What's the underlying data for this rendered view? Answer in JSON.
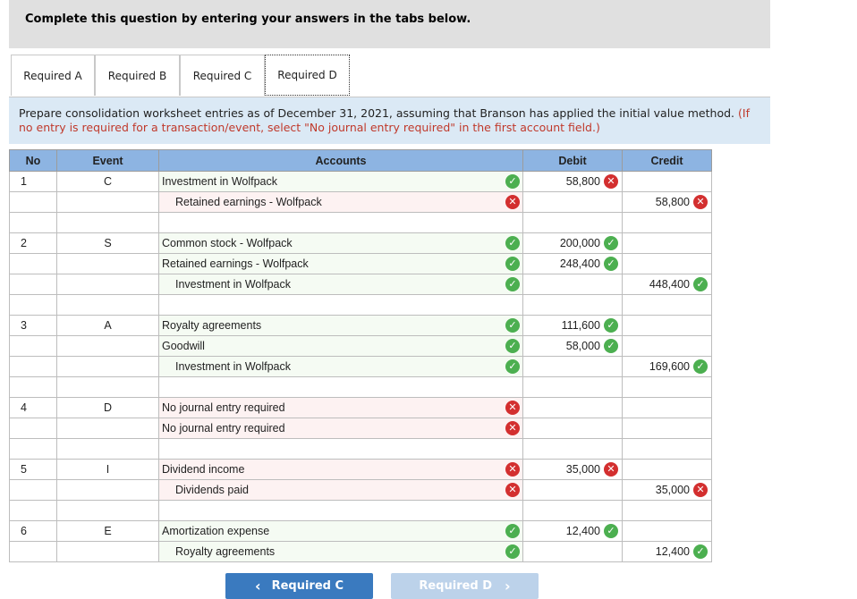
{
  "header": {
    "title": "Complete this question by entering your answers in the tabs below."
  },
  "tabs": [
    {
      "label": "Required A",
      "active": false
    },
    {
      "label": "Required B",
      "active": false
    },
    {
      "label": "Required C",
      "active": false
    },
    {
      "label": "Required D",
      "active": true
    }
  ],
  "instructions": {
    "main": "Prepare consolidation worksheet entries as of December 31, 2021, assuming that Branson has applied the initial value method.",
    "note": "(If no entry is required for a transaction/event, select \"No journal entry required\" in the first account field.)"
  },
  "table": {
    "headers": {
      "no": "No",
      "event": "Event",
      "accounts": "Accounts",
      "debit": "Debit",
      "credit": "Credit"
    },
    "rows": [
      {
        "no": "1",
        "event": "C",
        "account": "Investment in Wolfpack",
        "indent": false,
        "account_status": "ok",
        "debit": "58,800",
        "debit_status": "bad",
        "credit": "",
        "credit_status": ""
      },
      {
        "no": "",
        "event": "",
        "account": "Retained earnings - Wolfpack",
        "indent": true,
        "account_status": "bad",
        "debit": "",
        "debit_status": "",
        "credit": "58,800",
        "credit_status": "bad"
      },
      {
        "no": "",
        "event": "",
        "account": "",
        "indent": false,
        "account_status": "",
        "debit": "",
        "debit_status": "",
        "credit": "",
        "credit_status": ""
      },
      {
        "no": "2",
        "event": "S",
        "account": "Common stock - Wolfpack",
        "indent": false,
        "account_status": "ok",
        "debit": "200,000",
        "debit_status": "ok",
        "credit": "",
        "credit_status": ""
      },
      {
        "no": "",
        "event": "",
        "account": "Retained earnings - Wolfpack",
        "indent": false,
        "account_status": "ok",
        "debit": "248,400",
        "debit_status": "ok",
        "credit": "",
        "credit_status": ""
      },
      {
        "no": "",
        "event": "",
        "account": "Investment in Wolfpack",
        "indent": true,
        "account_status": "ok",
        "debit": "",
        "debit_status": "",
        "credit": "448,400",
        "credit_status": "ok"
      },
      {
        "no": "",
        "event": "",
        "account": "",
        "indent": false,
        "account_status": "",
        "debit": "",
        "debit_status": "",
        "credit": "",
        "credit_status": ""
      },
      {
        "no": "3",
        "event": "A",
        "account": "Royalty agreements",
        "indent": false,
        "account_status": "ok",
        "debit": "111,600",
        "debit_status": "ok",
        "credit": "",
        "credit_status": ""
      },
      {
        "no": "",
        "event": "",
        "account": "Goodwill",
        "indent": false,
        "account_status": "ok",
        "debit": "58,000",
        "debit_status": "ok",
        "credit": "",
        "credit_status": ""
      },
      {
        "no": "",
        "event": "",
        "account": "Investment in Wolfpack",
        "indent": true,
        "account_status": "ok",
        "debit": "",
        "debit_status": "",
        "credit": "169,600",
        "credit_status": "ok"
      },
      {
        "no": "",
        "event": "",
        "account": "",
        "indent": false,
        "account_status": "",
        "debit": "",
        "debit_status": "",
        "credit": "",
        "credit_status": ""
      },
      {
        "no": "4",
        "event": "D",
        "account": "No journal entry required",
        "indent": false,
        "account_status": "bad",
        "debit": "",
        "debit_status": "",
        "credit": "",
        "credit_status": ""
      },
      {
        "no": "",
        "event": "",
        "account": "No journal entry required",
        "indent": false,
        "account_status": "bad",
        "debit": "",
        "debit_status": "",
        "credit": "",
        "credit_status": ""
      },
      {
        "no": "",
        "event": "",
        "account": "",
        "indent": false,
        "account_status": "",
        "debit": "",
        "debit_status": "",
        "credit": "",
        "credit_status": ""
      },
      {
        "no": "5",
        "event": "I",
        "account": "Dividend income",
        "indent": false,
        "account_status": "bad",
        "debit": "35,000",
        "debit_status": "bad",
        "credit": "",
        "credit_status": ""
      },
      {
        "no": "",
        "event": "",
        "account": "Dividends paid",
        "indent": true,
        "account_status": "bad",
        "debit": "",
        "debit_status": "",
        "credit": "35,000",
        "credit_status": "bad"
      },
      {
        "no": "",
        "event": "",
        "account": "",
        "indent": false,
        "account_status": "",
        "debit": "",
        "debit_status": "",
        "credit": "",
        "credit_status": ""
      },
      {
        "no": "6",
        "event": "E",
        "account": "Amortization expense",
        "indent": false,
        "account_status": "ok",
        "debit": "12,400",
        "debit_status": "ok",
        "credit": "",
        "credit_status": ""
      },
      {
        "no": "",
        "event": "",
        "account": "Royalty agreements",
        "indent": true,
        "account_status": "ok",
        "debit": "",
        "debit_status": "",
        "credit": "12,400",
        "credit_status": "ok"
      }
    ]
  },
  "nav": {
    "prev_label": "Required C",
    "next_label": "Required D",
    "prev_arrow": "‹",
    "next_arrow": "›"
  },
  "colors": {
    "header_bg": "#e0e0e0",
    "table_header_bg": "#8db4e2",
    "correct": "#4caf50",
    "incorrect": "#d32f2f",
    "prev_button": "#3a7abf",
    "next_button": "#bcd2ea"
  }
}
